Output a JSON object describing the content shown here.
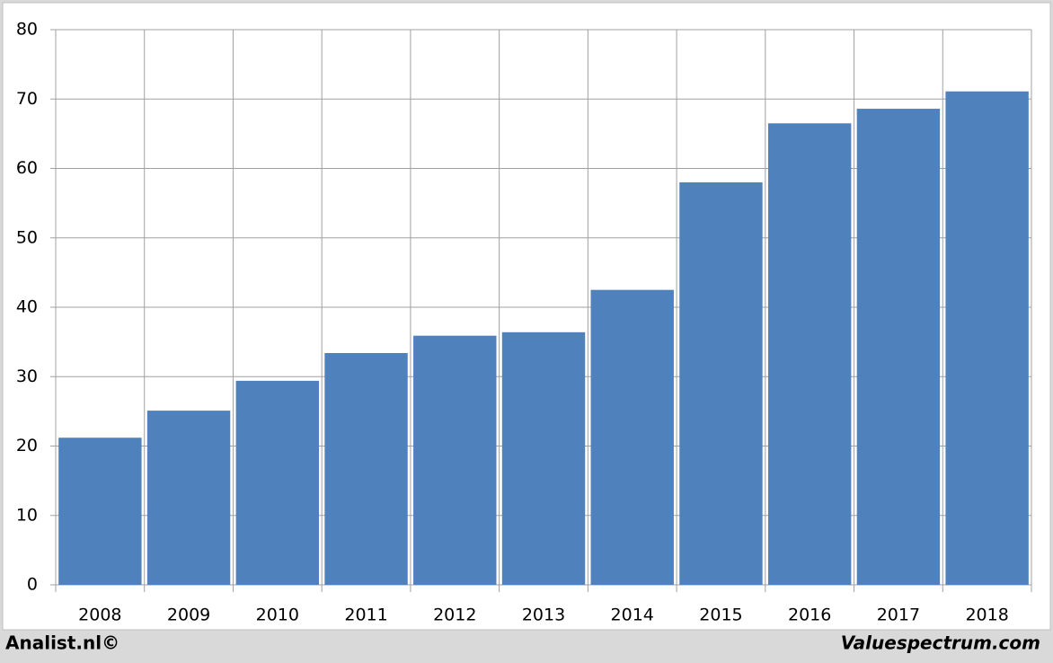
{
  "chart_data": {
    "type": "bar",
    "categories": [
      "2008",
      "2009",
      "2010",
      "2011",
      "2012",
      "2013",
      "2014",
      "2015",
      "2016",
      "2017",
      "2018"
    ],
    "values": [
      21.2,
      25.1,
      29.4,
      33.4,
      35.9,
      36.4,
      42.5,
      58.0,
      66.5,
      68.6,
      71.1
    ],
    "color": "#4f81bd",
    "ylim": [
      0,
      80
    ],
    "yticks": [
      0,
      10,
      20,
      30,
      40,
      50,
      60,
      70,
      80
    ],
    "grid": true
  },
  "footer": {
    "left": "Analist.nl©",
    "right": "Valuespectrum.com"
  }
}
